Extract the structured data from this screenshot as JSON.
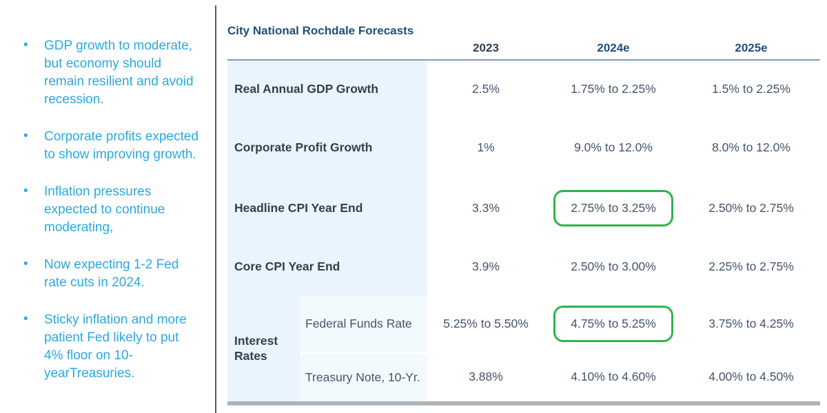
{
  "slide": {
    "accent_blue": "#29A9E2",
    "title_blue": "#1E4E79",
    "text_dark": "#333F50",
    "value_color": "#44546A",
    "highlight_green": "#2FB34A",
    "label_column_bg": "#E9F4FC",
    "sub_column_bg": "#F3FAFE"
  },
  "bullets": {
    "marker": "•",
    "items": [
      "GDP growth to moderate, but economy should remain resilient and avoid recession.",
      "Corporate profits expected to show improving growth.",
      "Inflation pressures expected to continue moderating,",
      "Now expecting 1-2 Fed rate cuts in 2024.",
      "Sticky inflation and more patient Fed likely to put 4% floor on 10-yearTreasuries."
    ]
  },
  "table": {
    "title": "City National Rochdale Forecasts",
    "columns": [
      "2023",
      "2024e",
      "2025e"
    ],
    "rows": [
      {
        "label": "Real Annual GDP Growth",
        "values": [
          "2.5%",
          "1.75% to 2.25%",
          "1.5% to 2.25%"
        ],
        "highlight_col": null
      },
      {
        "label": "Corporate Profit Growth",
        "values": [
          "1%",
          "9.0% to 12.0%",
          "8.0% to 12.0%"
        ],
        "highlight_col": null
      },
      {
        "label": "Headline CPI Year End",
        "values": [
          "3.3%",
          "2.75% to 3.25%",
          "2.50% to 2.75%"
        ],
        "highlight_col": "2024e"
      },
      {
        "label": "Core CPI Year End",
        "values": [
          "3.9%",
          "2.50% to 3.00%",
          "2.25% to 2.75%"
        ],
        "highlight_col": null
      },
      {
        "group": "Interest Rates",
        "label": "Federal Funds Rate",
        "values": [
          "5.25% to 5.50%",
          "4.75% to 5.25%",
          "3.75% to 4.25%"
        ],
        "highlight_col": "2024e"
      },
      {
        "group": "Interest Rates",
        "label": "Treasury Note, 10-Yr.",
        "values": [
          "3.88%",
          "4.10% to 4.60%",
          "4.00% to 4.50%"
        ],
        "highlight_col": null
      }
    ]
  }
}
